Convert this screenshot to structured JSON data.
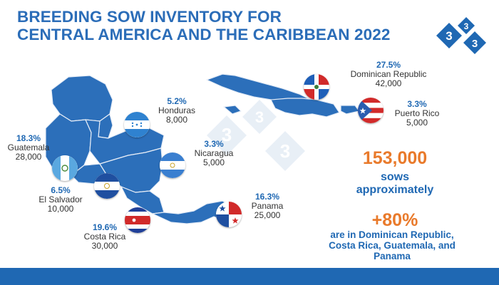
{
  "header": {
    "title_line1": "BREEDING SOW INVENTORY FOR",
    "title_line2": "CENTRAL AMERICA AND THE CARIBBEAN 2022"
  },
  "logo": {
    "digits": [
      "3",
      "3",
      "3"
    ],
    "icon": "three-diamonds-logo"
  },
  "watermark": {
    "digits": [
      "3",
      "3",
      "3"
    ]
  },
  "countries": {
    "dominican_republic": {
      "pct": "27.5%",
      "name": "Dominican Republic",
      "count": "42,000"
    },
    "puerto_rico": {
      "pct": "3.3%",
      "name": "Puerto Rico",
      "count": "5,000"
    },
    "honduras": {
      "pct": "5.2%",
      "name": "Honduras",
      "count": "8,000"
    },
    "nicaragua": {
      "pct": "3.3%",
      "name": "Nicaragua",
      "count": "5,000"
    },
    "guatemala": {
      "pct": "18.3%",
      "name": "Guatemala",
      "count": "28,000"
    },
    "el_salvador": {
      "pct": "6.5%",
      "name": "El Salvador",
      "count": "10,000"
    },
    "costa_rica": {
      "pct": "19.6%",
      "name": "Costa Rica",
      "count": "30,000"
    },
    "panama": {
      "pct": "16.3%",
      "name": "Panama",
      "count": "25,000"
    }
  },
  "summary": {
    "total": "153,000",
    "unit_line1": "sows",
    "unit_line2": "approximately",
    "share": "+80%",
    "share_line1": "are in Dominican Republic,",
    "share_line2": "Costa Rica, Guatemala, and",
    "share_line3": "Panama"
  },
  "colors": {
    "map_fill": "#2c6fba",
    "title": "#2b6db8",
    "accent_orange": "#e97a2b",
    "footer": "#1f68b3"
  }
}
